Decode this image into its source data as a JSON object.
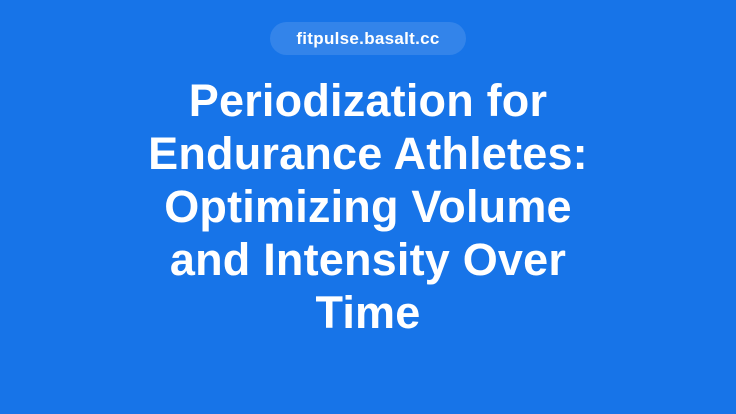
{
  "theme": {
    "background_color": "#1774e8",
    "badge_background_color": "rgba(255,255,255,0.12)",
    "text_color": "#ffffff"
  },
  "hero": {
    "badge_label": "fitpulse.basalt.cc",
    "title": "Periodization for\nEndurance Athletes:\nOptimizing Volume\nand Intensity Over\nTime"
  }
}
